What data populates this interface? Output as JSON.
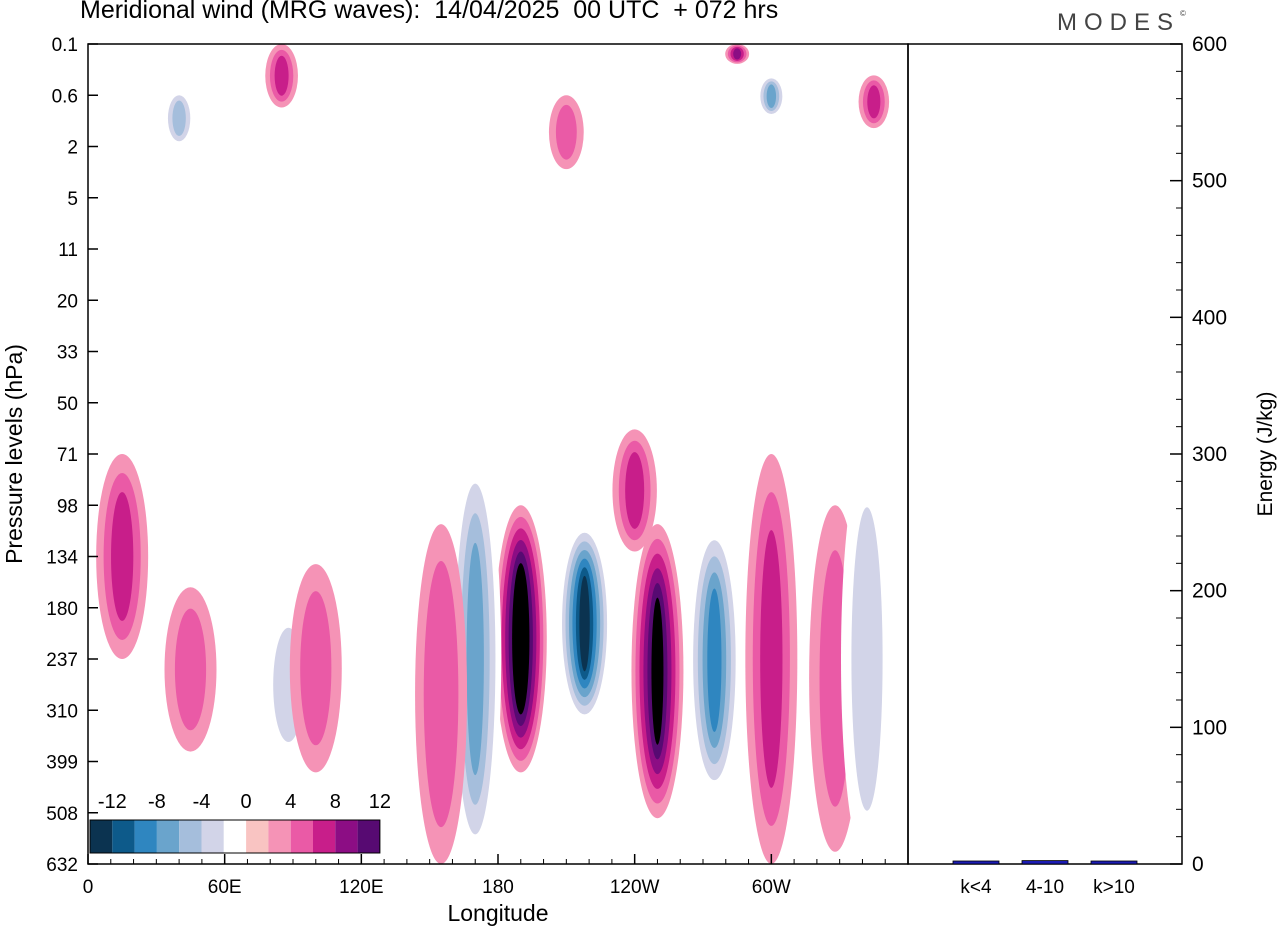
{
  "title": "Meridional wind (MRG waves):  14/04/2025  00 UTC  + 072 hrs",
  "brand": "MODES",
  "brand_mark": "©",
  "chart_data": [
    {
      "type": "heatmap",
      "title": "Meridional wind (MRG waves):  14/04/2025  00 UTC  + 072 hrs",
      "xlabel": "Longitude",
      "ylabel": "Pressure levels (hPa)",
      "x_ticks": [
        "0",
        "60E",
        "120E",
        "180",
        "120W",
        "60W"
      ],
      "x_tick_degrees": [
        0,
        60,
        120,
        180,
        240,
        300
      ],
      "x_range": [
        0,
        360
      ],
      "y_ticks": [
        "0.1",
        "0.6",
        "2",
        "5",
        "11",
        "20",
        "33",
        "50",
        "71",
        "98",
        "134",
        "180",
        "237",
        "310",
        "399",
        "508",
        "632"
      ],
      "colorbar": {
        "labels": [
          "-12",
          "-8",
          "-4",
          "0",
          "4",
          "8",
          "12"
        ],
        "levels": [
          -14,
          -12,
          -10,
          -8,
          -6,
          -4,
          -2,
          2,
          4,
          6,
          8,
          10,
          12,
          14
        ],
        "colors": [
          "#0b3350",
          "#0d5a8a",
          "#2f86c0",
          "#6aa4cc",
          "#a5bedc",
          "#d2d4e8",
          "#ffffff",
          "#f9c4c2",
          "#f593b6",
          "#ea5aa6",
          "#c81e8a",
          "#8c0d84",
          "#570a72"
        ]
      },
      "features": [
        {
          "lon": 190,
          "p_top": 98,
          "p_bot": 420,
          "value": 14
        },
        {
          "lon": 218,
          "p_top": 110,
          "p_bot": 330,
          "value": -14
        },
        {
          "lon": 250,
          "p_top": 110,
          "p_bot": 520,
          "value": 12
        },
        {
          "lon": 275,
          "p_top": 110,
          "p_bot": 470,
          "value": -10
        },
        {
          "lon": 300,
          "p_top": 71,
          "p_bot": 632,
          "value": 6
        },
        {
          "lon": 170,
          "p_top": 71,
          "p_bot": 632,
          "value": -8
        },
        {
          "lon": 155,
          "p_top": 110,
          "p_bot": 632,
          "value": 5
        },
        {
          "lon": 240,
          "p_top": 60,
          "p_bot": 130,
          "value": 6
        },
        {
          "lon": 328,
          "p_top": 98,
          "p_bot": 600,
          "value": 4
        },
        {
          "lon": 342,
          "p_top": 71,
          "p_bot": 632,
          "value": -4
        },
        {
          "lon": 15,
          "p_top": 71,
          "p_bot": 237,
          "value": 6
        },
        {
          "lon": 88,
          "p_top": 180,
          "p_bot": 400,
          "value": -4
        },
        {
          "lon": 100,
          "p_top": 140,
          "p_bot": 420,
          "value": 4
        },
        {
          "lon": 45,
          "p_top": 160,
          "p_bot": 380,
          "value": 4
        },
        {
          "lon": 40,
          "p_top": 0.5,
          "p_bot": 2,
          "value": -6
        },
        {
          "lon": 85,
          "p_top": 0.1,
          "p_bot": 0.8,
          "value": 6
        },
        {
          "lon": 210,
          "p_top": 0.6,
          "p_bot": 3,
          "value": 4
        },
        {
          "lon": 300,
          "p_top": 0.3,
          "p_bot": 1,
          "value": -8
        },
        {
          "lon": 345,
          "p_top": 0.3,
          "p_bot": 1.3,
          "value": 6
        },
        {
          "lon": 285,
          "p_top": 0.1,
          "p_bot": 0.2,
          "value": 8
        }
      ]
    },
    {
      "type": "bar",
      "ylabel": "Energy (J/kg)",
      "categories": [
        "k<4",
        "4-10",
        "k>10"
      ],
      "values": [
        0,
        2.5,
        0
      ],
      "ylim": [
        0,
        600
      ],
      "y_ticks": [
        "0",
        "100",
        "200",
        "300",
        "400",
        "500",
        "600"
      ],
      "bar_color": "#1c1cb4"
    }
  ]
}
